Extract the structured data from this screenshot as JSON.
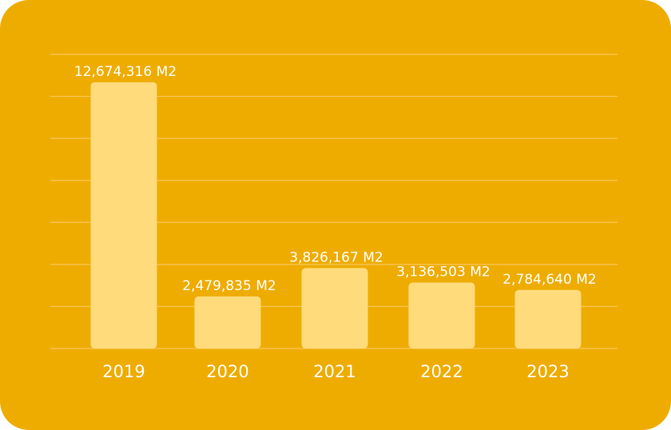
{
  "colors": {
    "background": "#efac00",
    "bar": "#ffdb7c",
    "grid": "#f6c75a",
    "text": "#ffffff"
  },
  "chart_data": {
    "type": "bar",
    "title": "",
    "xlabel": "",
    "ylabel": "",
    "categories": [
      "2019",
      "2020",
      "2021",
      "2022",
      "2023"
    ],
    "values": [
      12674316,
      2479835,
      3826167,
      3136503,
      2784640
    ],
    "data_labels": [
      "12,674,316 M2",
      "2,479,835 M2",
      "3,826,167 M2",
      "3,136,503 M2",
      "2,784,640 M2"
    ],
    "ylim": [
      0,
      14000000
    ],
    "grid": true,
    "gridline_count": 7,
    "legend": "none"
  }
}
